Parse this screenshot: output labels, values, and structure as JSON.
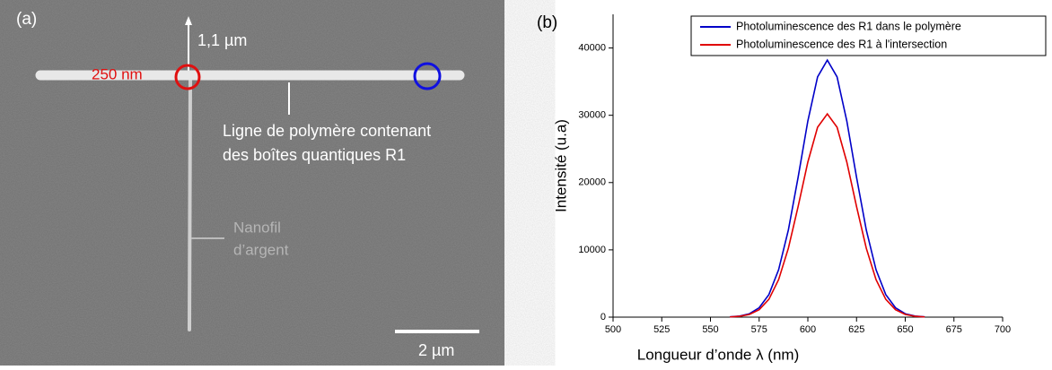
{
  "image": {
    "label": "(a)",
    "annotations": [
      "1,1 µm",
      "250 nm",
      "Ligne de polymère contenant",
      "des boîtes quantiques R1",
      "Nanofil",
      "d’argent",
      "2 µm"
    ]
  },
  "chart_data": {
    "type": "line",
    "panel_label": "(b)",
    "x_label": "Longueur d’onde λ (nm)",
    "y_label": "Intensité (u.a)",
    "x": [
      560,
      565,
      570,
      575,
      580,
      585,
      590,
      595,
      600,
      605,
      610,
      615,
      620,
      625,
      630,
      635,
      640,
      645,
      650,
      655,
      660
    ],
    "series": [
      {
        "name": "Photoluminescence des R1 dans le polymère",
        "color": "#0000c8",
        "values": [
          44,
          161,
          503,
          1395,
          3354,
          7052,
          12950,
          20780,
          29150,
          35700,
          38200,
          35700,
          29150,
          20780,
          12950,
          7052,
          3354,
          1395,
          503,
          161,
          44
        ]
      },
      {
        "name": "Photoluminescence des R1 à l'intersection",
        "color": "#e00000",
        "values": [
          35,
          127,
          398,
          1103,
          2652,
          5575,
          10240,
          16430,
          23050,
          28220,
          30200,
          28220,
          23050,
          16430,
          10240,
          5575,
          2652,
          1103,
          398,
          127,
          35
        ]
      }
    ],
    "xlim": [
      500,
      700
    ],
    "xticks": [
      500,
      525,
      550,
      575,
      600,
      625,
      650,
      675,
      700
    ],
    "ylim": [
      0,
      45000
    ],
    "yticks": [
      0,
      10000,
      20000,
      30000,
      40000
    ],
    "legend": "top-right"
  }
}
